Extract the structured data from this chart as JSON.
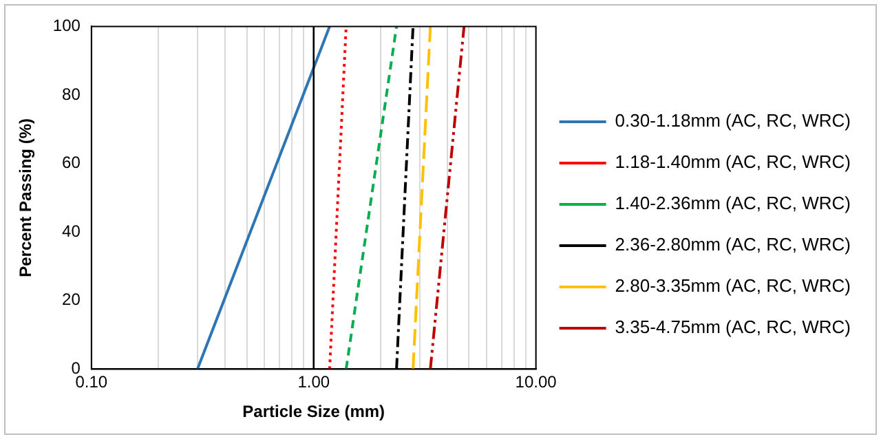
{
  "chart_data": {
    "type": "line",
    "xlabel": "Particle Size (mm)",
    "ylabel": "Percent Passing (%)",
    "log": "x",
    "grid": "x",
    "legend": "right",
    "marker": "none",
    "xlim": [
      0.1,
      10
    ],
    "ylim": [
      0,
      100
    ],
    "xticks": [
      {
        "value": 0.1,
        "label": "0.10"
      },
      {
        "value": 0.2,
        "label": null
      },
      {
        "value": 0.3,
        "label": null
      },
      {
        "value": 0.4,
        "label": null
      },
      {
        "value": 0.5,
        "label": null
      },
      {
        "value": 0.6,
        "label": null
      },
      {
        "value": 0.7,
        "label": null
      },
      {
        "value": 0.8,
        "label": null
      },
      {
        "value": 0.9,
        "label": null
      },
      {
        "value": 1,
        "label": "1.00"
      },
      {
        "value": 2,
        "label": null
      },
      {
        "value": 3,
        "label": null
      },
      {
        "value": 4,
        "label": null
      },
      {
        "value": 5,
        "label": null
      },
      {
        "value": 6,
        "label": null
      },
      {
        "value": 7,
        "label": null
      },
      {
        "value": 8,
        "label": null
      },
      {
        "value": 9,
        "label": null
      },
      {
        "value": 10,
        "label": "10.00"
      }
    ],
    "yticks": [
      0,
      20,
      40,
      60,
      80,
      100
    ],
    "ref_lines": [
      {
        "axis": "x",
        "value": 1,
        "color": "#000000"
      }
    ],
    "series": [
      {
        "name": "0.30-1.18mm (AC, RC, WRC)",
        "color": "#2e75b6",
        "line_style": "solid",
        "x": [
          0.3,
          1.18
        ],
        "values": [
          0,
          100
        ]
      },
      {
        "name": "1.18-1.40mm (AC, RC, WRC)",
        "color": "#ff0000",
        "line_style": "dotted",
        "x": [
          1.18,
          1.4
        ],
        "values": [
          0,
          100
        ]
      },
      {
        "name": "1.40-2.36mm (AC, RC, WRC)",
        "color": "#00b050",
        "line_style": "dashed",
        "x": [
          1.4,
          2.36
        ],
        "values": [
          0,
          100
        ]
      },
      {
        "name": "2.36-2.80mm (AC, RC, WRC)",
        "color": "#000000",
        "line_style": "dashdot",
        "x": [
          2.36,
          2.8
        ],
        "values": [
          0,
          100
        ]
      },
      {
        "name": "2.80-3.35mm (AC, RC, WRC)",
        "color": "#ffc000",
        "line_style": "longdash",
        "x": [
          2.8,
          3.35
        ],
        "values": [
          0,
          100
        ]
      },
      {
        "name": "3.35-4.75mm (AC, RC, WRC)",
        "color": "#c00000",
        "line_style": "dashdotdot",
        "x": [
          3.35,
          4.75
        ],
        "values": [
          0,
          100
        ]
      }
    ]
  }
}
